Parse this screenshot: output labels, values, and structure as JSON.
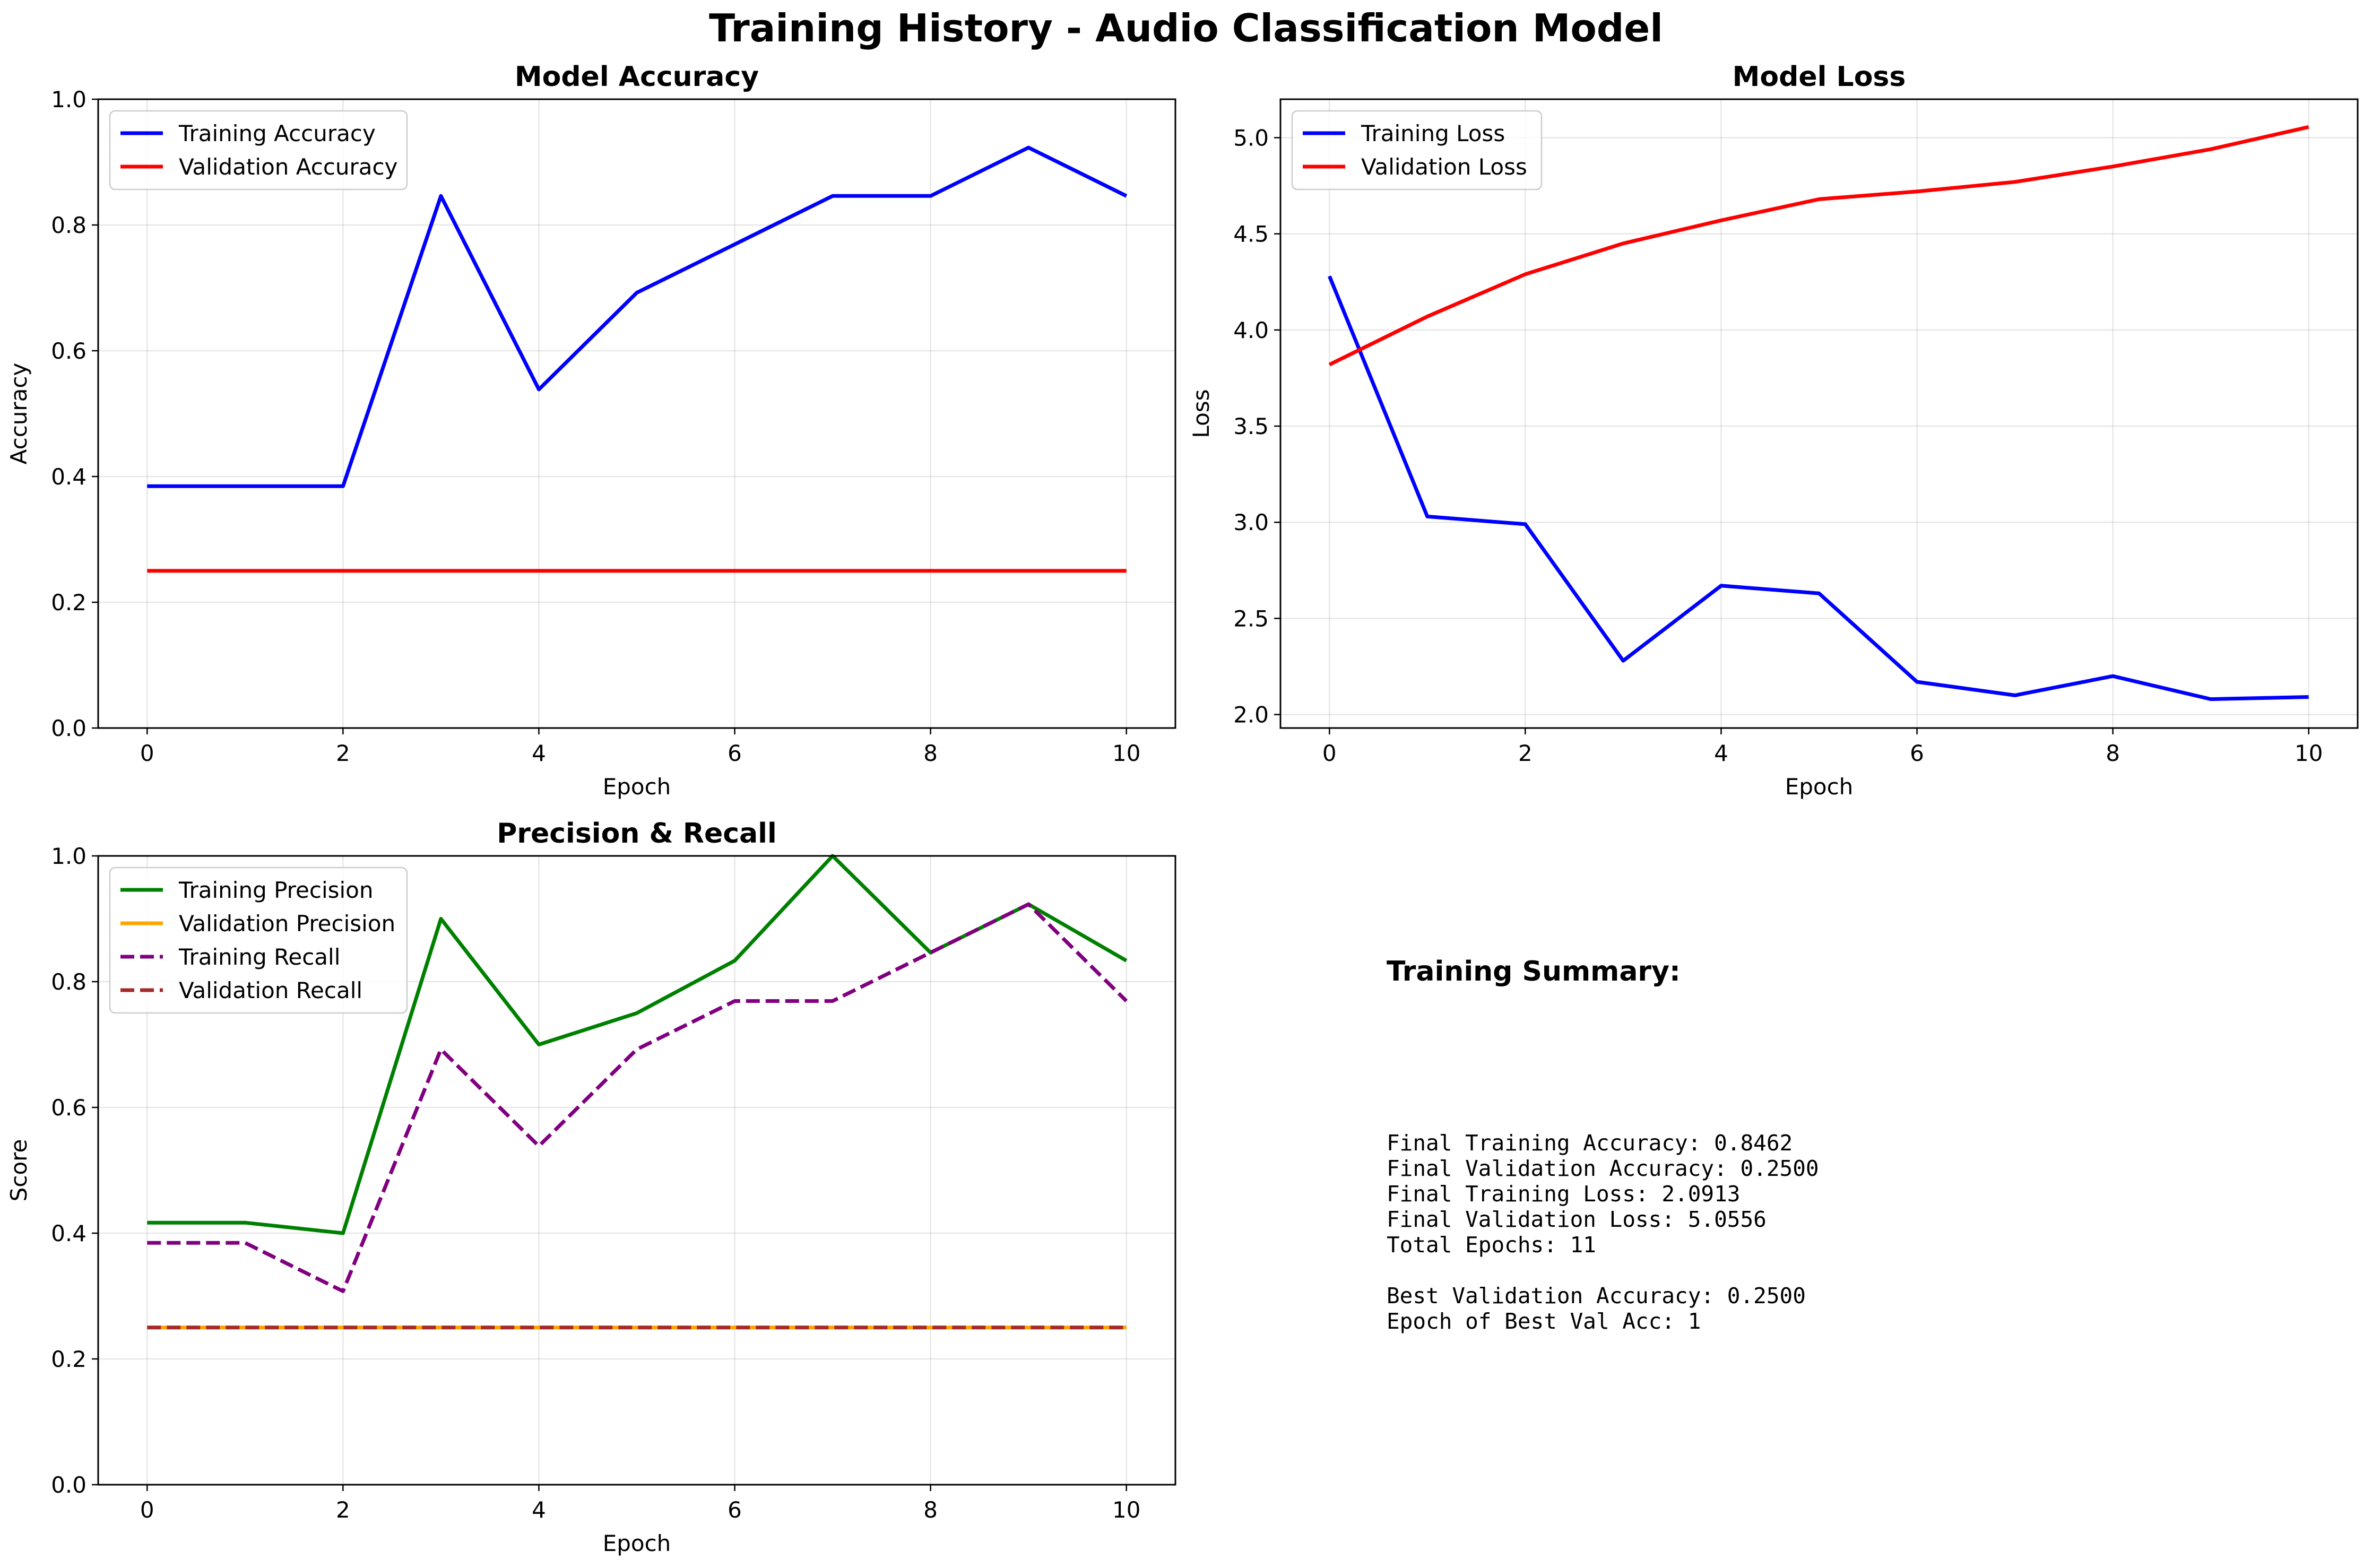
{
  "figure": {
    "title": "Training History - Audio Classification Model"
  },
  "chart_data": [
    {
      "type": "line",
      "title": "Model Accuracy",
      "xlabel": "Epoch",
      "ylabel": "Accuracy",
      "x": [
        0,
        1,
        2,
        3,
        4,
        5,
        6,
        7,
        8,
        9,
        10
      ],
      "xlim": [
        -0.5,
        10.5
      ],
      "ylim": [
        0.0,
        1.0
      ],
      "xticks": [
        0,
        2,
        4,
        6,
        8,
        10
      ],
      "yticks": [
        0.0,
        0.2,
        0.4,
        0.6,
        0.8,
        1.0
      ],
      "ytick_format": 1,
      "grid": true,
      "legend": "upper left",
      "series": [
        {
          "name": "Training Accuracy",
          "color": "#0000ff",
          "dash": "solid",
          "values": [
            0.3846,
            0.3846,
            0.3846,
            0.8462,
            0.5385,
            0.6923,
            0.7692,
            0.8462,
            0.8462,
            0.9231,
            0.8462
          ]
        },
        {
          "name": "Validation Accuracy",
          "color": "#ff0000",
          "dash": "solid",
          "values": [
            0.25,
            0.25,
            0.25,
            0.25,
            0.25,
            0.25,
            0.25,
            0.25,
            0.25,
            0.25,
            0.25
          ]
        }
      ]
    },
    {
      "type": "line",
      "title": "Model Loss",
      "xlabel": "Epoch",
      "ylabel": "Loss",
      "x": [
        0,
        1,
        2,
        3,
        4,
        5,
        6,
        7,
        8,
        9,
        10
      ],
      "xlim": [
        -0.5,
        10.5
      ],
      "ylim": [
        1.93,
        5.2
      ],
      "xticks": [
        0,
        2,
        4,
        6,
        8,
        10
      ],
      "yticks": [
        2.0,
        2.5,
        3.0,
        3.5,
        4.0,
        4.5,
        5.0
      ],
      "ytick_format": 1,
      "grid": true,
      "legend": "upper left",
      "series": [
        {
          "name": "Training Loss",
          "color": "#0000ff",
          "dash": "solid",
          "values": [
            4.28,
            3.03,
            2.99,
            2.28,
            2.67,
            2.63,
            2.17,
            2.1,
            2.2,
            2.08,
            2.0913
          ]
        },
        {
          "name": "Validation Loss",
          "color": "#ff0000",
          "dash": "solid",
          "values": [
            3.82,
            4.07,
            4.29,
            4.45,
            4.57,
            4.68,
            4.72,
            4.77,
            4.85,
            4.94,
            5.0556
          ]
        }
      ]
    },
    {
      "type": "line",
      "title": "Precision & Recall",
      "xlabel": "Epoch",
      "ylabel": "Score",
      "x": [
        0,
        1,
        2,
        3,
        4,
        5,
        6,
        7,
        8,
        9,
        10
      ],
      "xlim": [
        -0.5,
        10.5
      ],
      "ylim": [
        0.0,
        1.0
      ],
      "xticks": [
        0,
        2,
        4,
        6,
        8,
        10
      ],
      "yticks": [
        0.0,
        0.2,
        0.4,
        0.6,
        0.8,
        1.0
      ],
      "ytick_format": 1,
      "grid": true,
      "legend": "upper left",
      "series": [
        {
          "name": "Training Precision",
          "color": "#008000",
          "dash": "solid",
          "values": [
            0.4167,
            0.4167,
            0.4,
            0.9,
            0.7,
            0.75,
            0.8333,
            1.0,
            0.8462,
            0.9231,
            0.8333
          ]
        },
        {
          "name": "Validation Precision",
          "color": "#ffa500",
          "dash": "solid",
          "values": [
            0.25,
            0.25,
            0.25,
            0.25,
            0.25,
            0.25,
            0.25,
            0.25,
            0.25,
            0.25,
            0.25
          ]
        },
        {
          "name": "Training Recall",
          "color": "#800080",
          "dash": "dashed",
          "values": [
            0.3846,
            0.3846,
            0.3077,
            0.6923,
            0.5385,
            0.6923,
            0.7692,
            0.7692,
            0.8462,
            0.9231,
            0.7692
          ]
        },
        {
          "name": "Validation Recall",
          "color": "#a52a2a",
          "dash": "dashed",
          "values": [
            0.25,
            0.25,
            0.25,
            0.25,
            0.25,
            0.25,
            0.25,
            0.25,
            0.25,
            0.25,
            0.25
          ]
        }
      ]
    }
  ],
  "summary": {
    "title": "Training Summary:",
    "lines": [
      "Final Training Accuracy: 0.8462",
      "Final Validation Accuracy: 0.2500",
      "Final Training Loss: 2.0913",
      "Final Validation Loss: 5.0556",
      "Total Epochs: 11",
      "",
      "Best Validation Accuracy: 0.2500",
      "Epoch of Best Val Acc: 1"
    ]
  }
}
